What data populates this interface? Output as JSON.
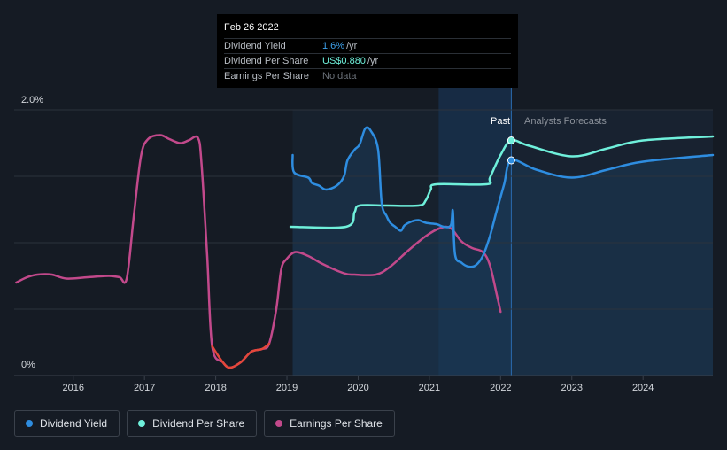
{
  "tooltip": {
    "date": "Feb 26 2022",
    "rows": [
      {
        "label": "Dividend Yield",
        "value": "1.6%",
        "unit": "/yr"
      },
      {
        "label": "Dividend Per Share",
        "value": "US$0.880",
        "unit": "/yr"
      },
      {
        "label": "Earnings Per Share",
        "value": "No data",
        "unit": ""
      }
    ]
  },
  "legend": [
    {
      "label": "Dividend Yield",
      "color": "#2e8de0"
    },
    {
      "label": "Dividend Per Share",
      "color": "#6ff0db"
    },
    {
      "label": "Earnings Per Share",
      "color": "#c2498b"
    }
  ],
  "chart_data": {
    "type": "line",
    "xlim": [
      2015.17,
      2024.98
    ],
    "ylim": [
      0,
      2.0
    ],
    "y_axis_labels": [
      "2.0%",
      "0%"
    ],
    "x_ticks": [
      2016,
      2017,
      2018,
      2019,
      2020,
      2021,
      2022,
      2023,
      2024
    ],
    "region_labels": {
      "past": "Past",
      "forecast": "Analysts Forecasts"
    },
    "forecast_start": 2022.15,
    "series": [
      {
        "name": "Dividend Yield",
        "color": "#2e8de0",
        "points": [
          [
            2019.08,
            1.66
          ],
          [
            2019.1,
            1.53
          ],
          [
            2019.3,
            1.49
          ],
          [
            2019.35,
            1.45
          ],
          [
            2019.45,
            1.43
          ],
          [
            2019.55,
            1.4
          ],
          [
            2019.7,
            1.43
          ],
          [
            2019.8,
            1.5
          ],
          [
            2019.85,
            1.62
          ],
          [
            2019.95,
            1.7
          ],
          [
            2020.02,
            1.74
          ],
          [
            2020.1,
            1.86
          ],
          [
            2020.18,
            1.84
          ],
          [
            2020.28,
            1.7
          ],
          [
            2020.33,
            1.3
          ],
          [
            2020.4,
            1.2
          ],
          [
            2020.45,
            1.15
          ],
          [
            2020.52,
            1.12
          ],
          [
            2020.6,
            1.09
          ],
          [
            2020.65,
            1.13
          ],
          [
            2020.75,
            1.16
          ],
          [
            2020.85,
            1.17
          ],
          [
            2020.95,
            1.15
          ],
          [
            2021.1,
            1.14
          ],
          [
            2021.2,
            1.12
          ],
          [
            2021.3,
            1.13
          ],
          [
            2021.33,
            1.24
          ],
          [
            2021.36,
            0.91
          ],
          [
            2021.45,
            0.85
          ],
          [
            2021.55,
            0.82
          ],
          [
            2021.65,
            0.83
          ],
          [
            2021.75,
            0.9
          ],
          [
            2021.85,
            1.05
          ],
          [
            2021.95,
            1.25
          ],
          [
            2022.05,
            1.44
          ],
          [
            2022.15,
            1.62
          ],
          [
            2022.5,
            1.55
          ],
          [
            2023.0,
            1.49
          ],
          [
            2023.5,
            1.55
          ],
          [
            2024.0,
            1.61
          ],
          [
            2024.98,
            1.66
          ]
        ],
        "marker": [
          2022.15,
          1.62
        ]
      },
      {
        "name": "Dividend Per Share",
        "color": "#6ff0db",
        "points": [
          [
            2019.05,
            1.12
          ],
          [
            2019.83,
            1.12
          ],
          [
            2019.95,
            1.23
          ],
          [
            2020.02,
            1.28
          ],
          [
            2020.4,
            1.28
          ],
          [
            2020.85,
            1.28
          ],
          [
            2020.95,
            1.32
          ],
          [
            2021.02,
            1.4
          ],
          [
            2021.1,
            1.44
          ],
          [
            2021.8,
            1.44
          ],
          [
            2021.85,
            1.49
          ],
          [
            2022.0,
            1.66
          ],
          [
            2022.15,
            1.77
          ],
          [
            2022.4,
            1.73
          ],
          [
            2023.0,
            1.65
          ],
          [
            2023.5,
            1.71
          ],
          [
            2024.0,
            1.77
          ],
          [
            2024.98,
            1.8
          ]
        ],
        "marker": [
          2022.15,
          1.77
        ]
      },
      {
        "name": "Earnings Per Share",
        "color": "#c2498b",
        "negative_color": "#e4473a",
        "points": [
          [
            2015.2,
            0.7
          ],
          [
            2015.35,
            0.74
          ],
          [
            2015.5,
            0.76
          ],
          [
            2015.7,
            0.76
          ],
          [
            2015.9,
            0.73
          ],
          [
            2016.2,
            0.74
          ],
          [
            2016.5,
            0.75
          ],
          [
            2016.65,
            0.74
          ],
          [
            2016.75,
            0.73
          ],
          [
            2016.85,
            1.2
          ],
          [
            2016.95,
            1.65
          ],
          [
            2017.05,
            1.78
          ],
          [
            2017.22,
            1.81
          ],
          [
            2017.35,
            1.78
          ],
          [
            2017.5,
            1.75
          ],
          [
            2017.62,
            1.77
          ],
          [
            2017.75,
            1.79
          ],
          [
            2017.8,
            1.6
          ],
          [
            2017.88,
            0.9
          ],
          [
            2017.95,
            0.22
          ],
          [
            2018.1,
            0.1
          ],
          [
            2018.2,
            0.06
          ],
          [
            2018.35,
            0.1
          ],
          [
            2018.5,
            0.18
          ],
          [
            2018.65,
            0.2
          ],
          [
            2018.75,
            0.24
          ],
          [
            2018.85,
            0.5
          ],
          [
            2018.92,
            0.8
          ],
          [
            2019.0,
            0.88
          ],
          [
            2019.12,
            0.93
          ],
          [
            2019.3,
            0.9
          ],
          [
            2019.5,
            0.84
          ],
          [
            2019.8,
            0.77
          ],
          [
            2019.95,
            0.76
          ],
          [
            2020.25,
            0.76
          ],
          [
            2020.45,
            0.82
          ],
          [
            2020.7,
            0.94
          ],
          [
            2020.95,
            1.05
          ],
          [
            2021.15,
            1.11
          ],
          [
            2021.3,
            1.11
          ],
          [
            2021.45,
            1.01
          ],
          [
            2021.6,
            0.96
          ],
          [
            2021.75,
            0.93
          ],
          [
            2021.85,
            0.83
          ],
          [
            2021.95,
            0.6
          ],
          [
            2022.0,
            0.48
          ]
        ],
        "negative_range": [
          2017.92,
          2018.82
        ]
      }
    ]
  }
}
